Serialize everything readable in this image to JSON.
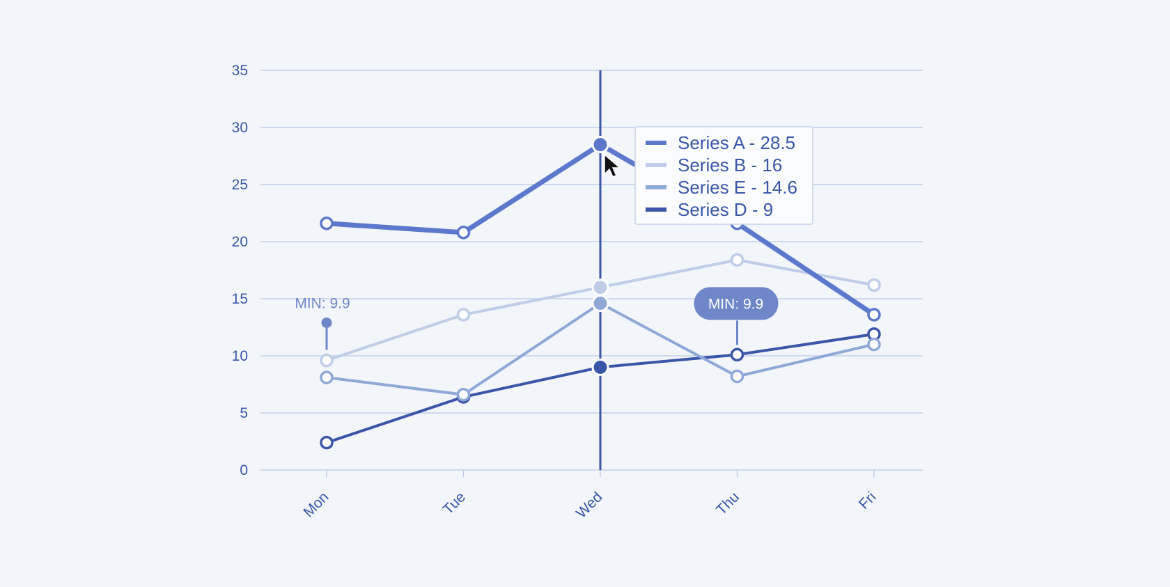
{
  "chart_data": {
    "type": "line",
    "categories": [
      "Mon",
      "Tue",
      "Wed",
      "Thu",
      "Fri"
    ],
    "ylim": [
      0,
      35
    ],
    "yticks": [
      0,
      5,
      10,
      15,
      20,
      25,
      30,
      35
    ],
    "grid": true,
    "series": [
      {
        "name": "Series A",
        "values": [
          21.6,
          20.8,
          28.5,
          21.6,
          13.6
        ],
        "color": "#5b78cc",
        "width": 7
      },
      {
        "name": "Series B",
        "values": [
          9.6,
          13.6,
          16.0,
          18.4,
          16.2
        ],
        "color": "#bfcde8",
        "width": 4
      },
      {
        "name": "Series E",
        "values": [
          8.1,
          6.6,
          14.6,
          8.2,
          11.0
        ],
        "color": "#8ea8d8",
        "width": 4
      },
      {
        "name": "Series D",
        "values": [
          2.4,
          6.4,
          9.0,
          10.1,
          11.9
        ],
        "color": "#3a56a8",
        "width": 4
      }
    ],
    "hover": {
      "category": "Wed",
      "legend_entries": [
        "Series A - 28.5",
        "Series B - 16",
        "Series E - 14.6",
        "Series D - 9"
      ]
    },
    "annotations": [
      {
        "label": "MIN: 9.9",
        "category": "Mon",
        "value": 12.9,
        "style": "plain",
        "color": "#6f86c8"
      },
      {
        "label": "MIN: 9.9",
        "category": "Thu",
        "value": 10.1,
        "style": "pill",
        "color": "#6f86c8"
      }
    ]
  }
}
